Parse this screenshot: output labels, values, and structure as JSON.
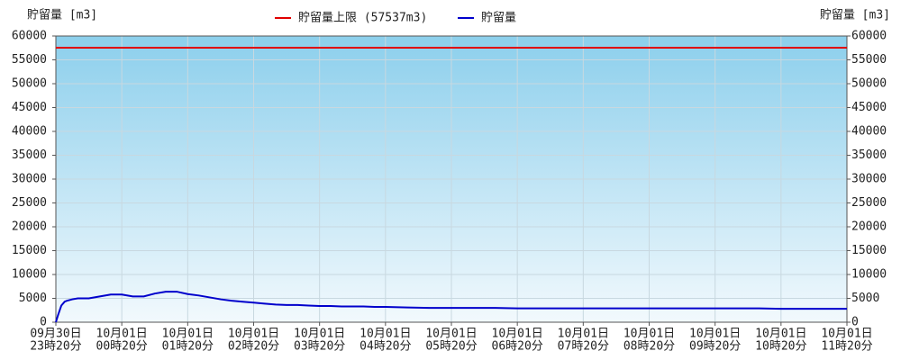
{
  "chart_data": {
    "type": "line",
    "y_label": "貯留量 [m3]",
    "limit": {
      "name": "貯留量上限 (57537m3)",
      "value": 57537,
      "color": "#e00000"
    },
    "x": [
      0,
      2,
      5,
      8,
      10,
      15,
      20,
      30,
      40,
      50,
      60,
      70,
      80,
      90,
      100,
      110,
      120,
      130,
      140,
      150,
      160,
      170,
      180,
      190,
      200,
      210,
      220,
      230,
      240,
      250,
      260,
      270,
      280,
      290,
      300,
      320,
      340,
      360,
      380,
      400,
      420,
      440,
      460,
      480,
      500,
      520,
      540,
      560,
      580,
      600,
      620,
      640,
      660,
      680,
      700,
      720
    ],
    "series": [
      {
        "name": "貯留量",
        "color": "#0000cc",
        "values": [
          0,
          1500,
          3500,
          4300,
          4500,
          4800,
          5000,
          5000,
          5400,
          5800,
          5800,
          5400,
          5400,
          6000,
          6400,
          6400,
          5900,
          5600,
          5200,
          4800,
          4500,
          4300,
          4100,
          3900,
          3700,
          3600,
          3600,
          3500,
          3400,
          3400,
          3300,
          3300,
          3300,
          3200,
          3200,
          3100,
          3000,
          3000,
          3000,
          3000,
          2900,
          2900,
          2900,
          2900,
          2900,
          2900,
          2900,
          2900,
          2900,
          2900,
          2900,
          2900,
          2800,
          2800,
          2800,
          2800
        ]
      }
    ],
    "xlim": [
      0,
      720
    ],
    "xticks": [
      {
        "value": 0,
        "label": [
          "09月30日",
          "23時20分"
        ]
      },
      {
        "value": 60,
        "label": [
          "10月01日",
          "00時20分"
        ]
      },
      {
        "value": 120,
        "label": [
          "10月01日",
          "01時20分"
        ]
      },
      {
        "value": 180,
        "label": [
          "10月01日",
          "02時20分"
        ]
      },
      {
        "value": 240,
        "label": [
          "10月01日",
          "03時20分"
        ]
      },
      {
        "value": 300,
        "label": [
          "10月01日",
          "04時20分"
        ]
      },
      {
        "value": 360,
        "label": [
          "10月01日",
          "05時20分"
        ]
      },
      {
        "value": 420,
        "label": [
          "10月01日",
          "06時20分"
        ]
      },
      {
        "value": 480,
        "label": [
          "10月01日",
          "07時20分"
        ]
      },
      {
        "value": 540,
        "label": [
          "10月01日",
          "08時20分"
        ]
      },
      {
        "value": 600,
        "label": [
          "10月01日",
          "09時20分"
        ]
      },
      {
        "value": 660,
        "label": [
          "10月01日",
          "10時20分"
        ]
      },
      {
        "value": 720,
        "label": [
          "10月01日",
          "11時20分"
        ]
      }
    ],
    "ylim": [
      0,
      60000
    ],
    "yticks": [
      0,
      5000,
      10000,
      15000,
      20000,
      25000,
      30000,
      35000,
      40000,
      45000,
      50000,
      55000,
      60000
    ],
    "grid": true
  }
}
